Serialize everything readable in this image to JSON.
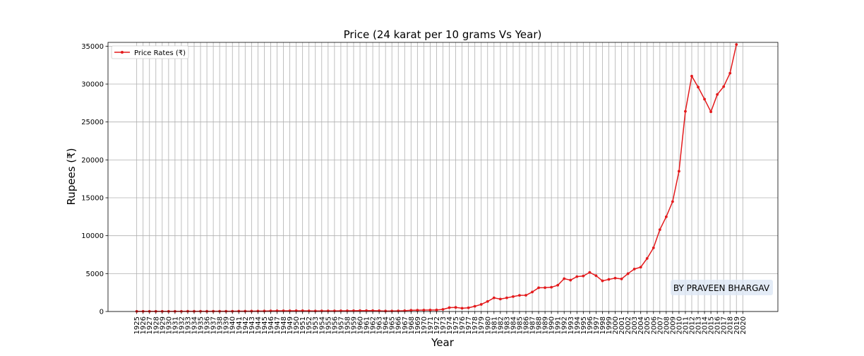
{
  "chart_data": {
    "type": "line",
    "title": "Price (24 karat per 10 grams Vs Year)",
    "xlabel": "Year",
    "ylabel": "Rupees (₹)",
    "ylim": [
      0,
      35500
    ],
    "xlim": [
      1920.5,
      2025.5
    ],
    "yticks": [
      "0",
      "5000",
      "10000",
      "15000",
      "20000",
      "25000",
      "30000",
      "35000"
    ],
    "xticks": [
      "1925",
      "1926",
      "1927",
      "1928",
      "1929",
      "1930",
      "1931",
      "1932",
      "1933",
      "1934",
      "1935",
      "1936",
      "1937",
      "1938",
      "1939",
      "1940",
      "1941",
      "1942",
      "1943",
      "1944",
      "1945",
      "1946",
      "1947",
      "1948",
      "1949",
      "1950",
      "1951",
      "1952",
      "1953",
      "1954",
      "1955",
      "1956",
      "1957",
      "1958",
      "1959",
      "1960",
      "1961",
      "1962",
      "1963",
      "1964",
      "1965",
      "1966",
      "1967",
      "1968",
      "1969",
      "1970",
      "1971",
      "1972",
      "1973",
      "1974",
      "1975",
      "1976",
      "1977",
      "1978",
      "1979",
      "1980",
      "1981",
      "1982",
      "1983",
      "1984",
      "1985",
      "1986",
      "1987",
      "1988",
      "1989",
      "1990",
      "1991",
      "1992",
      "1993",
      "1994",
      "1995",
      "1996",
      "1997",
      "1998",
      "1999",
      "2000",
      "2001",
      "2002",
      "2003",
      "2004",
      "2005",
      "2006",
      "2007",
      "2008",
      "2009",
      "2010",
      "2011",
      "2012",
      "2013",
      "2014",
      "2015",
      "2016",
      "2017",
      "2018",
      "2019",
      "2020"
    ],
    "grid": true,
    "legend_position": "top-left",
    "series": [
      {
        "name": "Price Rates (₹)",
        "color": "#e31a1c",
        "x": [
          1925,
          1926,
          1927,
          1928,
          1929,
          1930,
          1931,
          1932,
          1933,
          1934,
          1935,
          1936,
          1937,
          1938,
          1939,
          1940,
          1941,
          1942,
          1943,
          1944,
          1945,
          1946,
          1947,
          1948,
          1949,
          1950,
          1951,
          1952,
          1953,
          1954,
          1955,
          1956,
          1957,
          1958,
          1959,
          1960,
          1961,
          1962,
          1963,
          1964,
          1965,
          1966,
          1967,
          1968,
          1969,
          1970,
          1971,
          1972,
          1973,
          1974,
          1975,
          1976,
          1977,
          1978,
          1979,
          1980,
          1981,
          1982,
          1983,
          1984,
          1985,
          1986,
          1987,
          1988,
          1989,
          1990,
          1991,
          1992,
          1993,
          1994,
          1995,
          1996,
          1997,
          1998,
          1999,
          2000,
          2001,
          2002,
          2003,
          2004,
          2005,
          2006,
          2007,
          2008,
          2009,
          2010,
          2011,
          2012,
          2013,
          2014,
          2015,
          2016,
          2017,
          2018,
          2019
        ],
        "values": [
          18,
          18,
          18,
          19,
          18,
          18,
          18,
          24,
          30,
          29,
          30,
          29,
          30,
          32,
          37,
          37,
          48,
          44,
          52,
          57,
          62,
          83,
          89,
          96,
          94,
          99,
          98,
          76,
          73,
          77,
          80,
          81,
          89,
          95,
          102,
          112,
          119,
          119,
          97,
          63,
          72,
          84,
          103,
          162,
          176,
          184,
          193,
          202,
          279,
          507,
          541,
          433,
          486,
          685,
          937,
          1330,
          1800,
          1645,
          1800,
          1970,
          2130,
          2140,
          2570,
          3130,
          3140,
          3200,
          3466,
          4334,
          4140,
          4598,
          4680,
          5160,
          4725,
          4045,
          4234,
          4400,
          4300,
          4990,
          5600,
          5850,
          7000,
          8400,
          10800,
          12500,
          14500,
          18500,
          26400,
          31050,
          29600,
          28006,
          26343,
          28623,
          29667,
          31438,
          35220
        ]
      }
    ],
    "annotations": [
      "BY PRAVEEN BHARGAV"
    ]
  }
}
